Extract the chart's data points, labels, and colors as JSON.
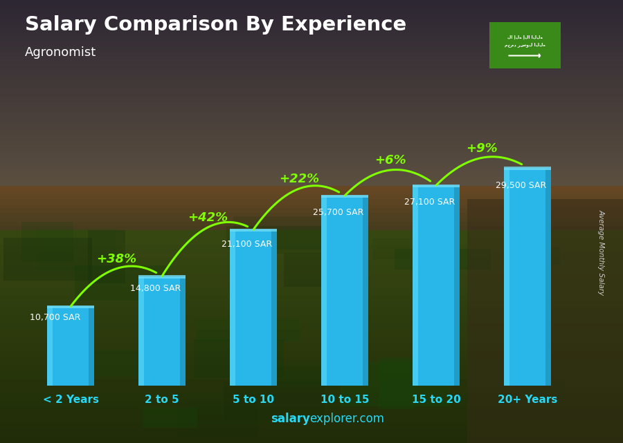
{
  "title": "Salary Comparison By Experience",
  "subtitle": "Agronomist",
  "categories": [
    "< 2 Years",
    "2 to 5",
    "5 to 10",
    "10 to 15",
    "15 to 20",
    "20+ Years"
  ],
  "values": [
    10700,
    14800,
    21100,
    25700,
    27100,
    29500
  ],
  "bar_color": "#29b6e8",
  "bar_highlight_color": "#55d4f5",
  "bar_shadow_color": "#1a8cb5",
  "value_labels": [
    "10,700 SAR",
    "14,800 SAR",
    "21,100 SAR",
    "25,700 SAR",
    "27,100 SAR",
    "29,500 SAR"
  ],
  "pct_labels": [
    "+38%",
    "+42%",
    "+22%",
    "+6%",
    "+9%"
  ],
  "pct_color": "#7fff00",
  "title_color": "#ffffff",
  "subtitle_color": "#ffffff",
  "xtick_color": "#29d8f5",
  "value_label_color": "#ffffff",
  "ylabel_text": "Average Monthly Salary",
  "footer_salary": "salary",
  "footer_explorer": "explorer",
  "footer_domain": ".com",
  "bg_sky_color": "#5a5060",
  "bg_ground_color": "#3a5a20",
  "bg_mid_color": "#4a6030",
  "ylim": [
    0,
    36000
  ],
  "bar_width": 0.52
}
